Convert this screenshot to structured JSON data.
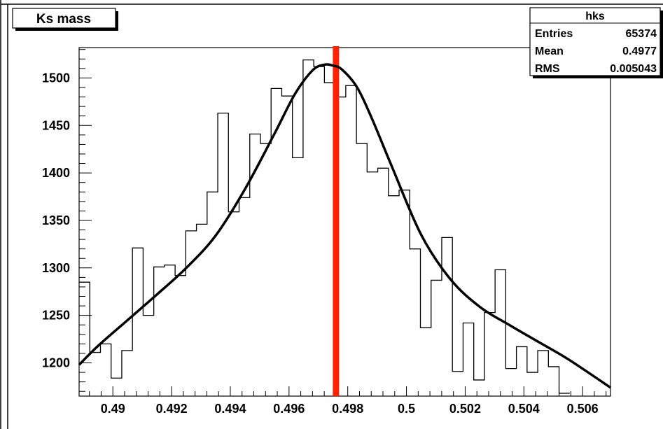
{
  "chart_data": {
    "type": "line",
    "title": "Ks mass",
    "xlabel": "",
    "ylabel": "",
    "xlim": [
      0.48885,
      0.50695
    ],
    "ylim": [
      1165,
      1532
    ],
    "x_ticks": [
      0.49,
      0.492,
      0.494,
      0.496,
      0.498,
      0.5,
      0.502,
      0.504,
      0.506
    ],
    "x_tick_labels": [
      "0.49",
      "0.492",
      "0.494",
      "0.496",
      "0.498",
      "0.5",
      "0.502",
      "0.504",
      "0.506"
    ],
    "y_ticks": [
      1200,
      1250,
      1300,
      1350,
      1400,
      1450,
      1500
    ],
    "y_tick_labels": [
      "1200",
      "1250",
      "1300",
      "1350",
      "1400",
      "1450",
      "1500"
    ],
    "histogram": {
      "bin_low_edge": 0.48885,
      "bin_width": 0.0003633,
      "counts": [
        1285,
        1211,
        1220,
        1184,
        1213,
        1321,
        1250,
        1301,
        1303,
        1292,
        1339,
        1346,
        1380,
        1463,
        1359,
        1374,
        1441,
        1431,
        1489,
        1481,
        1416,
        1519,
        1512,
        1495,
        1480,
        1492,
        1431,
        1401,
        1405,
        1376,
        1382,
        1320,
        1237,
        1287,
        1332,
        1191,
        1242,
        1182,
        1253,
        1298,
        1194,
        1217,
        1190,
        1213,
        1196,
        1168
      ]
    },
    "fit_curve": {
      "x": [
        0.48885,
        0.4895,
        0.4905,
        0.4915,
        0.4925,
        0.4935,
        0.4945,
        0.4955,
        0.4962,
        0.4968,
        0.4972,
        0.4975,
        0.4978,
        0.4983,
        0.4988,
        0.4995,
        0.5005,
        0.5015,
        0.5025,
        0.5035,
        0.5045,
        0.5055,
        0.50695
      ],
      "y": [
        1198,
        1218,
        1245,
        1272,
        1300,
        1334,
        1383,
        1441,
        1483,
        1508,
        1514,
        1513,
        1509,
        1491,
        1459,
        1407,
        1335,
        1288,
        1259,
        1240,
        1222,
        1204,
        1174
      ]
    },
    "marker_line_x": 0.4976,
    "grid": false,
    "stats_box": {
      "title": "hks",
      "rows": [
        {
          "label": "Entries",
          "value": "65374"
        },
        {
          "label": "Mean",
          "value": "0.4977"
        },
        {
          "label": "RMS",
          "value": "0.005043"
        }
      ]
    },
    "colors": {
      "histogram": "#000000",
      "fit": "#000000",
      "marker": "#ff2200",
      "frame": "#000000",
      "background": "#ffffff"
    }
  }
}
